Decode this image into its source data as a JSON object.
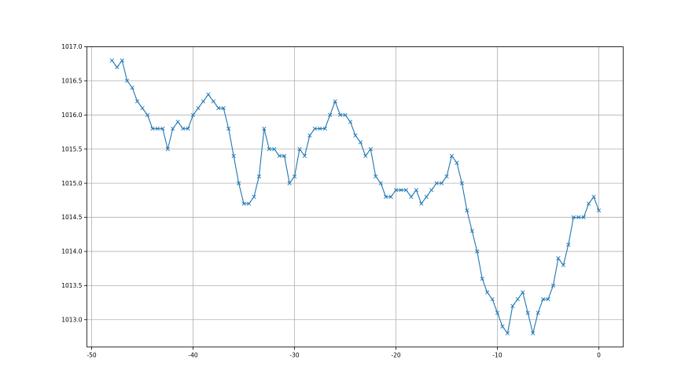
{
  "chart_data": {
    "type": "line",
    "title": "",
    "xlabel": "",
    "ylabel": "",
    "xlim": [
      -50.47,
      2.4
    ],
    "ylim": [
      1012.6,
      1017.0
    ],
    "grid": true,
    "marker": "x",
    "color": "#1f77b4",
    "x_ticks": [
      "-50",
      "-40",
      "-30",
      "-20",
      "-10",
      "0"
    ],
    "y_ticks": [
      "1013.0",
      "1013.5",
      "1014.0",
      "1014.5",
      "1015.0",
      "1015.5",
      "1016.0",
      "1016.5",
      "1017.0"
    ],
    "series": [
      {
        "x": [
          -48,
          -47.5,
          -47,
          -46.5,
          -46,
          -45.5,
          -45,
          -44.5,
          -44,
          -43.5,
          -43,
          -42.5,
          -42,
          -41.5,
          -41,
          -40.5,
          -40,
          -39.5,
          -39,
          -38.5,
          -38,
          -37.5,
          -37,
          -36.5,
          -36,
          -35.5,
          -35,
          -34.5,
          -34,
          -33.5,
          -33,
          -32.5,
          -32,
          -31.5,
          -31,
          -30.5,
          -30,
          -29.5,
          -29,
          -28.5,
          -28,
          -27.5,
          -27,
          -26.5,
          -26,
          -25.5,
          -25,
          -24.5,
          -24,
          -23.5,
          -23,
          -22.5,
          -22,
          -21.5,
          -21,
          -20.5,
          -20,
          -19.5,
          -19,
          -18.5,
          -18,
          -17.5,
          -17,
          -16.5,
          -16,
          -15.5,
          -15,
          -14.5,
          -14,
          -13.5,
          -13,
          -12.5,
          -12,
          -11.5,
          -11,
          -10.5,
          -10,
          -9.5,
          -9,
          -8.5,
          -8,
          -7.5,
          -7,
          -6.5,
          -6,
          -5.5,
          -5,
          -4.5,
          -4,
          -3.5,
          -3,
          -2.5,
          -2,
          -1.5,
          -1,
          -0.5,
          0
        ],
        "y": [
          1016.8,
          1016.7,
          1016.8,
          1016.5,
          1016.4,
          1016.2,
          1016.1,
          1016.0,
          1015.8,
          1015.8,
          1015.8,
          1015.5,
          1015.8,
          1015.9,
          1015.8,
          1015.8,
          1016.0,
          1016.1,
          1016.2,
          1016.3,
          1016.2,
          1016.1,
          1016.1,
          1015.8,
          1015.4,
          1015.0,
          1014.7,
          1014.7,
          1014.8,
          1015.1,
          1015.8,
          1015.5,
          1015.5,
          1015.4,
          1015.4,
          1015.0,
          1015.1,
          1015.5,
          1015.4,
          1015.7,
          1015.8,
          1015.8,
          1015.8,
          1016.0,
          1016.2,
          1016.0,
          1016.0,
          1015.9,
          1015.7,
          1015.6,
          1015.4,
          1015.5,
          1015.1,
          1015.0,
          1014.8,
          1014.8,
          1014.9,
          1014.9,
          1014.9,
          1014.8,
          1014.9,
          1014.7,
          1014.8,
          1014.9,
          1015.0,
          1015.0,
          1015.1,
          1015.4,
          1015.3,
          1015.0,
          1014.6,
          1014.3,
          1014.0,
          1013.6,
          1013.4,
          1013.3,
          1013.1,
          1012.9,
          1012.8,
          1013.2,
          1013.3,
          1013.4,
          1013.1,
          1012.8,
          1013.1,
          1013.3,
          1013.3,
          1013.5,
          1013.9,
          1013.8,
          1014.1,
          1014.5,
          1014.5,
          1014.5,
          1014.7,
          1014.8,
          1014.6
        ]
      }
    ]
  }
}
